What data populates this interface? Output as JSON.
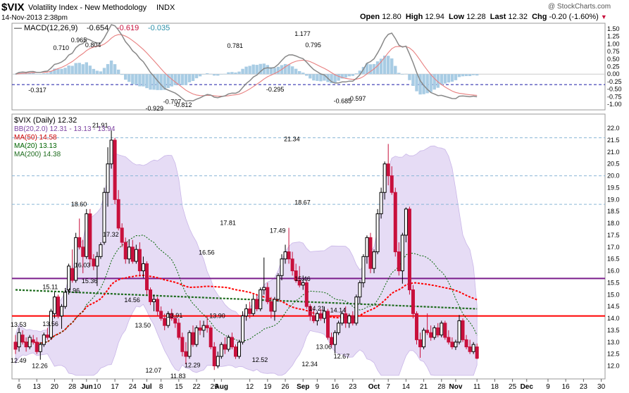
{
  "header": {
    "symbol": "$VIX",
    "name": "Volatility Index - New Methodology",
    "exchange": "INDX",
    "date": "14-Nov-2013 2:38pm",
    "watermark": "@ StockCharts.com",
    "quote": {
      "open_label": "Open",
      "open": "12.80",
      "high_label": "High",
      "high": "12.94",
      "low_label": "Low",
      "low": "12.28",
      "last_label": "Last",
      "last": "12.32",
      "chg_label": "Chg",
      "chg": "-0.20 (-1.60%)"
    }
  },
  "macd_panel": {
    "legend_name": "MACD(12,26,9)",
    "legend_v1": "-0.654",
    "legend_v2": "-0.619",
    "legend_v3": "-0.035",
    "ylim": [
      -1.0,
      1.5
    ],
    "ticks": [
      "1.50",
      "1.25",
      "1.00",
      "0.75",
      "0.50",
      "0.25",
      "0.00",
      "-0.25",
      "-0.50",
      "-0.75",
      "-1.00"
    ],
    "ref_line": -0.35,
    "annotations": [
      {
        "text": "-0.317",
        "x": 6,
        "y": -0.317
      },
      {
        "text": "0.710",
        "x": 13,
        "y": 0.71
      },
      {
        "text": "0.965",
        "x": 18,
        "y": 0.965
      },
      {
        "text": "0.804",
        "x": 22,
        "y": 0.804
      },
      {
        "text": "-0.929",
        "x": 39,
        "y": -0.929
      },
      {
        "text": "-0.707",
        "x": 44,
        "y": -0.707
      },
      {
        "text": "-0.812",
        "x": 47,
        "y": -0.812
      },
      {
        "text": "0.781",
        "x": 62,
        "y": 0.781
      },
      {
        "text": "-0.295",
        "x": 73,
        "y": -0.295
      },
      {
        "text": "1.177",
        "x": 81,
        "y": 1.177
      },
      {
        "text": "0.795",
        "x": 84,
        "y": 0.795
      },
      {
        "text": "-0.597",
        "x": 96,
        "y": -0.597
      },
      {
        "text": "-0.685",
        "x": 92,
        "y": -0.685
      }
    ]
  },
  "price_panel": {
    "legend_title": "$VIX (Daily) 12.32",
    "legend_bb": "BB(20,2.0) 12.31 - 13.13 - 13.94",
    "legend_ma50": "MA(50) 14.58",
    "legend_ma20": "MA(20) 13.13",
    "legend_ma200": "MA(200) 14.38",
    "ticks": [
      "22.0",
      "21.5",
      "21.0",
      "20.5",
      "20.0",
      "19.5",
      "19.0",
      "18.5",
      "18.0",
      "17.5",
      "17.0",
      "16.5",
      "16.0",
      "15.5",
      "15.0",
      "14.5",
      "14.0",
      "13.5",
      "13.0",
      "12.5",
      "12.0"
    ],
    "annotations": [
      {
        "text": "13.53",
        "x": 1,
        "y": 13.53
      },
      {
        "text": "12.49",
        "x": 1,
        "y": 12.49
      },
      {
        "text": "12.26",
        "x": 7,
        "y": 12.26
      },
      {
        "text": "13.56",
        "x": 10,
        "y": 13.56
      },
      {
        "text": "15.11",
        "x": 10,
        "y": 15.11
      },
      {
        "text": "14.96",
        "x": 16,
        "y": 14.96
      },
      {
        "text": "18.60",
        "x": 18,
        "y": 18.6
      },
      {
        "text": "16.03",
        "x": 19,
        "y": 16.03
      },
      {
        "text": "15.36",
        "x": 21,
        "y": 15.36
      },
      {
        "text": "21.91",
        "x": 24,
        "y": 21.91
      },
      {
        "text": "17.32",
        "x": 27,
        "y": 17.32
      },
      {
        "text": "14.56",
        "x": 33,
        "y": 14.56
      },
      {
        "text": "13.50",
        "x": 36,
        "y": 13.5
      },
      {
        "text": "12.07",
        "x": 39,
        "y": 12.07
      },
      {
        "text": "13.91",
        "x": 45,
        "y": 13.91
      },
      {
        "text": "11.83",
        "x": 46,
        "y": 11.83
      },
      {
        "text": "12.29",
        "x": 50,
        "y": 12.29
      },
      {
        "text": "16.56",
        "x": 54,
        "y": 16.56
      },
      {
        "text": "13.90",
        "x": 57,
        "y": 13.9
      },
      {
        "text": "17.81",
        "x": 60,
        "y": 17.81
      },
      {
        "text": "12.52",
        "x": 69,
        "y": 12.52
      },
      {
        "text": "17.49",
        "x": 74,
        "y": 17.49
      },
      {
        "text": "21.34",
        "x": 78,
        "y": 21.34
      },
      {
        "text": "18.67",
        "x": 81,
        "y": 18.67
      },
      {
        "text": "15.46",
        "x": 81,
        "y": 15.46
      },
      {
        "text": "12.34",
        "x": 83,
        "y": 12.34
      },
      {
        "text": "14.21",
        "x": 85,
        "y": 14.21
      },
      {
        "text": "13.06",
        "x": 87,
        "y": 13.06
      },
      {
        "text": "14.14",
        "x": 91,
        "y": 14.14
      },
      {
        "text": "12.67",
        "x": 92,
        "y": 12.67
      }
    ]
  },
  "x_axis_labels": [
    {
      "text": "6",
      "x": 1
    },
    {
      "text": "13",
      "x": 6
    },
    {
      "text": "20",
      "x": 11
    },
    {
      "text": "28",
      "x": 16
    },
    {
      "text": "Jun",
      "x": 20,
      "bold": true
    },
    {
      "text": "10",
      "x": 23
    },
    {
      "text": "17",
      "x": 28
    },
    {
      "text": "24",
      "x": 33
    },
    {
      "text": "Jul",
      "x": 37,
      "bold": true
    },
    {
      "text": "8",
      "x": 41
    },
    {
      "text": "15",
      "x": 46
    },
    {
      "text": "22",
      "x": 51
    },
    {
      "text": "29",
      "x": 56
    },
    {
      "text": "Aug",
      "x": 58,
      "bold": true
    },
    {
      "text": "12",
      "x": 66
    },
    {
      "text": "19",
      "x": 71
    },
    {
      "text": "26",
      "x": 76
    },
    {
      "text": "Sep",
      "x": 81,
      "bold": true
    },
    {
      "text": "9",
      "x": 85
    },
    {
      "text": "16",
      "x": 90
    },
    {
      "text": "23",
      "x": 95
    },
    {
      "text": "Oct",
      "x": 101,
      "bold": true
    },
    {
      "text": "7",
      "x": 105
    },
    {
      "text": "14",
      "x": 110
    },
    {
      "text": "21",
      "x": 115
    },
    {
      "text": "28",
      "x": 120
    },
    {
      "text": "Nov",
      "x": 124,
      "bold": true
    },
    {
      "text": "11",
      "x": 130
    },
    {
      "text": "18",
      "x": 135
    },
    {
      "text": "25",
      "x": 140
    },
    {
      "text": "Dec",
      "x": 144,
      "bold": true
    },
    {
      "text": "9",
      "x": 150
    },
    {
      "text": "16",
      "x": 155
    },
    {
      "text": "23",
      "x": 160
    },
    {
      "text": "30",
      "x": 165
    }
  ],
  "colors": {
    "up": "#000000",
    "down": "#c8103c",
    "bb_fill": "#e6dcf5",
    "bb_line": "#c9b6e8",
    "ma50": "#ff0000",
    "ma20": "#006400",
    "ma200": "#1d6b1d",
    "macd": "#888888",
    "signal": "#e88080",
    "hist": "#a8cce4",
    "purple_line": "#7b1e8c",
    "red_line": "#ff0000"
  },
  "chart_data": {
    "type": "candlestick",
    "title": "$VIX (Daily) 12.32",
    "ylim": [
      11.6,
      22.3
    ],
    "horizontal_lines": [
      {
        "value": 15.68,
        "color": "purple"
      },
      {
        "value": 14.1,
        "color": "red"
      },
      {
        "value": 21.6,
        "style": "dashed"
      },
      {
        "value": 20.0,
        "style": "dashed"
      },
      {
        "value": 18.8,
        "style": "dashed"
      }
    ],
    "candles": [
      {
        "o": 13.0,
        "h": 13.3,
        "l": 12.5,
        "c": 12.7
      },
      {
        "o": 12.8,
        "h": 13.6,
        "l": 12.6,
        "c": 13.4
      },
      {
        "o": 13.3,
        "h": 13.5,
        "l": 12.9,
        "c": 13.0
      },
      {
        "o": 13.0,
        "h": 13.2,
        "l": 12.6,
        "c": 12.8
      },
      {
        "o": 12.8,
        "h": 13.3,
        "l": 12.7,
        "c": 13.2
      },
      {
        "o": 13.1,
        "h": 13.3,
        "l": 12.9,
        "c": 13.0
      },
      {
        "o": 13.0,
        "h": 13.2,
        "l": 12.5,
        "c": 12.6
      },
      {
        "o": 12.6,
        "h": 13.0,
        "l": 12.26,
        "c": 12.9
      },
      {
        "o": 12.9,
        "h": 13.4,
        "l": 12.8,
        "c": 13.3
      },
      {
        "o": 13.3,
        "h": 13.6,
        "l": 13.1,
        "c": 13.2
      },
      {
        "o": 13.2,
        "h": 14.4,
        "l": 13.1,
        "c": 14.3
      },
      {
        "o": 14.2,
        "h": 15.11,
        "l": 14.0,
        "c": 14.9
      },
      {
        "o": 14.9,
        "h": 15.0,
        "l": 14.0,
        "c": 14.1
      },
      {
        "o": 14.1,
        "h": 14.6,
        "l": 13.56,
        "c": 14.5
      },
      {
        "o": 14.5,
        "h": 15.2,
        "l": 14.4,
        "c": 15.1
      },
      {
        "o": 15.2,
        "h": 16.3,
        "l": 15.0,
        "c": 16.2
      },
      {
        "o": 16.1,
        "h": 16.9,
        "l": 15.5,
        "c": 15.6
      },
      {
        "o": 15.6,
        "h": 17.6,
        "l": 15.5,
        "c": 17.4
      },
      {
        "o": 17.4,
        "h": 18.2,
        "l": 16.9,
        "c": 17.0
      },
      {
        "o": 17.0,
        "h": 17.3,
        "l": 15.9,
        "c": 16.6
      },
      {
        "o": 16.6,
        "h": 18.6,
        "l": 16.5,
        "c": 18.4
      },
      {
        "o": 18.4,
        "h": 18.6,
        "l": 16.2,
        "c": 16.5
      },
      {
        "o": 16.5,
        "h": 16.7,
        "l": 16.03,
        "c": 16.2
      },
      {
        "o": 16.2,
        "h": 16.8,
        "l": 15.36,
        "c": 16.6
      },
      {
        "o": 16.6,
        "h": 17.2,
        "l": 16.5,
        "c": 17.1
      },
      {
        "o": 17.2,
        "h": 19.5,
        "l": 17.1,
        "c": 19.3
      },
      {
        "o": 19.3,
        "h": 21.2,
        "l": 18.7,
        "c": 20.5
      },
      {
        "o": 20.5,
        "h": 21.91,
        "l": 20.3,
        "c": 21.5
      },
      {
        "o": 21.5,
        "h": 21.6,
        "l": 18.8,
        "c": 19.0
      },
      {
        "o": 19.0,
        "h": 19.4,
        "l": 17.7,
        "c": 17.8
      },
      {
        "o": 17.8,
        "h": 18.0,
        "l": 17.0,
        "c": 17.2
      },
      {
        "o": 17.2,
        "h": 17.4,
        "l": 16.3,
        "c": 16.5
      },
      {
        "o": 16.5,
        "h": 17.32,
        "l": 16.3,
        "c": 17.0
      },
      {
        "o": 17.0,
        "h": 17.3,
        "l": 16.3,
        "c": 16.4
      },
      {
        "o": 16.4,
        "h": 17.1,
        "l": 16.3,
        "c": 16.9
      },
      {
        "o": 16.9,
        "h": 17.2,
        "l": 15.8,
        "c": 16.0
      },
      {
        "o": 16.0,
        "h": 16.6,
        "l": 15.7,
        "c": 16.3
      },
      {
        "o": 16.3,
        "h": 16.4,
        "l": 15.0,
        "c": 15.2
      },
      {
        "o": 15.2,
        "h": 15.3,
        "l": 14.56,
        "c": 14.7
      },
      {
        "o": 14.7,
        "h": 15.0,
        "l": 14.3,
        "c": 14.8
      },
      {
        "o": 14.8,
        "h": 14.9,
        "l": 14.1,
        "c": 14.3
      },
      {
        "o": 14.3,
        "h": 14.5,
        "l": 13.9,
        "c": 14.0
      },
      {
        "o": 14.0,
        "h": 14.2,
        "l": 13.5,
        "c": 13.7
      },
      {
        "o": 13.7,
        "h": 14.3,
        "l": 13.6,
        "c": 14.2
      },
      {
        "o": 14.2,
        "h": 14.4,
        "l": 13.9,
        "c": 14.0
      },
      {
        "o": 14.0,
        "h": 14.1,
        "l": 13.6,
        "c": 13.8
      },
      {
        "o": 13.8,
        "h": 14.0,
        "l": 13.1,
        "c": 13.2
      },
      {
        "o": 13.2,
        "h": 13.4,
        "l": 12.4,
        "c": 12.6
      },
      {
        "o": 12.6,
        "h": 13.0,
        "l": 12.07,
        "c": 12.4
      },
      {
        "o": 12.4,
        "h": 13.5,
        "l": 12.3,
        "c": 13.4
      },
      {
        "o": 13.4,
        "h": 13.7,
        "l": 12.8,
        "c": 12.9
      },
      {
        "o": 12.9,
        "h": 13.7,
        "l": 12.8,
        "c": 13.6
      },
      {
        "o": 13.6,
        "h": 13.91,
        "l": 13.3,
        "c": 13.5
      },
      {
        "o": 13.5,
        "h": 13.9,
        "l": 13.2,
        "c": 13.7
      },
      {
        "o": 13.7,
        "h": 14.1,
        "l": 13.4,
        "c": 13.6
      },
      {
        "o": 13.6,
        "h": 13.7,
        "l": 12.7,
        "c": 12.8
      },
      {
        "o": 12.8,
        "h": 13.0,
        "l": 11.83,
        "c": 12.0
      },
      {
        "o": 12.0,
        "h": 12.6,
        "l": 11.9,
        "c": 12.4
      },
      {
        "o": 12.4,
        "h": 13.0,
        "l": 12.3,
        "c": 12.9
      },
      {
        "o": 12.9,
        "h": 13.2,
        "l": 12.5,
        "c": 12.7
      },
      {
        "o": 12.7,
        "h": 13.3,
        "l": 12.6,
        "c": 13.2
      },
      {
        "o": 13.2,
        "h": 13.4,
        "l": 12.7,
        "c": 12.8
      },
      {
        "o": 12.8,
        "h": 12.9,
        "l": 12.29,
        "c": 12.4
      },
      {
        "o": 12.4,
        "h": 13.1,
        "l": 12.3,
        "c": 13.0
      },
      {
        "o": 13.0,
        "h": 14.3,
        "l": 12.9,
        "c": 14.1
      },
      {
        "o": 14.1,
        "h": 14.6,
        "l": 13.9,
        "c": 14.4
      },
      {
        "o": 14.4,
        "h": 14.7,
        "l": 14.0,
        "c": 14.2
      },
      {
        "o": 14.2,
        "h": 15.0,
        "l": 14.1,
        "c": 14.8
      },
      {
        "o": 14.8,
        "h": 15.0,
        "l": 14.3,
        "c": 14.4
      },
      {
        "o": 14.4,
        "h": 15.3,
        "l": 14.3,
        "c": 15.2
      },
      {
        "o": 15.2,
        "h": 16.56,
        "l": 15.0,
        "c": 15.3
      },
      {
        "o": 15.3,
        "h": 15.5,
        "l": 14.6,
        "c": 14.7
      },
      {
        "o": 14.7,
        "h": 14.9,
        "l": 14.0,
        "c": 14.3
      },
      {
        "o": 14.3,
        "h": 14.9,
        "l": 13.9,
        "c": 14.8
      },
      {
        "o": 14.8,
        "h": 15.9,
        "l": 14.7,
        "c": 15.8
      },
      {
        "o": 15.8,
        "h": 16.7,
        "l": 15.6,
        "c": 16.5
      },
      {
        "o": 16.5,
        "h": 17.1,
        "l": 16.3,
        "c": 16.8
      },
      {
        "o": 16.8,
        "h": 17.81,
        "l": 16.3,
        "c": 16.5
      },
      {
        "o": 16.5,
        "h": 16.8,
        "l": 15.8,
        "c": 16.0
      },
      {
        "o": 16.0,
        "h": 16.3,
        "l": 15.5,
        "c": 15.6
      },
      {
        "o": 15.6,
        "h": 16.2,
        "l": 15.3,
        "c": 15.4
      },
      {
        "o": 15.4,
        "h": 15.8,
        "l": 15.2,
        "c": 15.5
      },
      {
        "o": 15.5,
        "h": 15.6,
        "l": 14.4,
        "c": 14.5
      },
      {
        "o": 14.5,
        "h": 14.6,
        "l": 13.9,
        "c": 14.1
      },
      {
        "o": 14.1,
        "h": 14.4,
        "l": 13.8,
        "c": 13.9
      },
      {
        "o": 13.9,
        "h": 14.3,
        "l": 13.7,
        "c": 14.2
      },
      {
        "o": 14.2,
        "h": 14.4,
        "l": 13.9,
        "c": 14.0
      },
      {
        "o": 14.0,
        "h": 14.5,
        "l": 13.8,
        "c": 14.3
      },
      {
        "o": 14.3,
        "h": 14.4,
        "l": 13.1,
        "c": 13.2
      },
      {
        "o": 13.2,
        "h": 13.4,
        "l": 12.8,
        "c": 12.9
      },
      {
        "o": 12.9,
        "h": 13.5,
        "l": 12.52,
        "c": 13.4
      },
      {
        "o": 13.4,
        "h": 13.9,
        "l": 13.3,
        "c": 13.8
      },
      {
        "o": 13.8,
        "h": 14.3,
        "l": 13.7,
        "c": 14.2
      },
      {
        "o": 14.2,
        "h": 14.5,
        "l": 13.6,
        "c": 13.8
      },
      {
        "o": 13.8,
        "h": 14.2,
        "l": 13.6,
        "c": 14.1
      },
      {
        "o": 14.1,
        "h": 14.3,
        "l": 13.7,
        "c": 13.8
      },
      {
        "o": 13.8,
        "h": 15.0,
        "l": 13.7,
        "c": 14.9
      },
      {
        "o": 14.9,
        "h": 15.6,
        "l": 14.6,
        "c": 15.5
      },
      {
        "o": 15.5,
        "h": 16.7,
        "l": 15.3,
        "c": 16.6
      },
      {
        "o": 16.6,
        "h": 17.49,
        "l": 16.3,
        "c": 17.4
      },
      {
        "o": 17.4,
        "h": 17.6,
        "l": 15.9,
        "c": 16.1
      },
      {
        "o": 16.1,
        "h": 16.9,
        "l": 15.9,
        "c": 16.8
      },
      {
        "o": 16.8,
        "h": 18.6,
        "l": 16.7,
        "c": 18.4
      },
      {
        "o": 18.4,
        "h": 19.5,
        "l": 18.2,
        "c": 19.3
      },
      {
        "o": 19.3,
        "h": 20.6,
        "l": 19.0,
        "c": 20.5
      },
      {
        "o": 20.5,
        "h": 21.34,
        "l": 19.6,
        "c": 20.0
      },
      {
        "o": 20.0,
        "h": 20.4,
        "l": 19.2,
        "c": 19.3
      },
      {
        "o": 19.3,
        "h": 19.5,
        "l": 16.6,
        "c": 16.8
      },
      {
        "o": 16.8,
        "h": 17.2,
        "l": 15.8,
        "c": 16.0
      },
      {
        "o": 16.0,
        "h": 17.6,
        "l": 15.46,
        "c": 17.5
      },
      {
        "o": 17.5,
        "h": 18.67,
        "l": 17.2,
        "c": 18.6
      },
      {
        "o": 18.6,
        "h": 18.7,
        "l": 15.0,
        "c": 15.2
      },
      {
        "o": 15.2,
        "h": 15.4,
        "l": 14.0,
        "c": 14.2
      },
      {
        "o": 14.2,
        "h": 14.3,
        "l": 12.9,
        "c": 13.1
      },
      {
        "o": 13.1,
        "h": 13.4,
        "l": 12.34,
        "c": 12.8
      },
      {
        "o": 12.8,
        "h": 13.6,
        "l": 12.7,
        "c": 13.5
      },
      {
        "o": 13.5,
        "h": 14.21,
        "l": 13.3,
        "c": 13.4
      },
      {
        "o": 13.4,
        "h": 13.7,
        "l": 13.06,
        "c": 13.2
      },
      {
        "o": 13.2,
        "h": 13.7,
        "l": 13.1,
        "c": 13.6
      },
      {
        "o": 13.6,
        "h": 13.8,
        "l": 13.2,
        "c": 13.3
      },
      {
        "o": 13.3,
        "h": 13.9,
        "l": 13.2,
        "c": 13.8
      },
      {
        "o": 13.8,
        "h": 13.9,
        "l": 13.1,
        "c": 13.2
      },
      {
        "o": 13.2,
        "h": 13.5,
        "l": 12.9,
        "c": 13.0
      },
      {
        "o": 13.0,
        "h": 13.2,
        "l": 12.7,
        "c": 12.8
      },
      {
        "o": 12.8,
        "h": 13.1,
        "l": 12.67,
        "c": 13.0
      },
      {
        "o": 13.0,
        "h": 14.14,
        "l": 12.9,
        "c": 13.9
      },
      {
        "o": 13.9,
        "h": 14.0,
        "l": 13.0,
        "c": 13.1
      },
      {
        "o": 13.1,
        "h": 13.3,
        "l": 12.7,
        "c": 12.8
      },
      {
        "o": 12.8,
        "h": 13.1,
        "l": 12.5,
        "c": 12.6
      },
      {
        "o": 12.6,
        "h": 13.0,
        "l": 12.5,
        "c": 12.9
      },
      {
        "o": 12.8,
        "h": 12.94,
        "l": 12.28,
        "c": 12.32
      }
    ]
  }
}
